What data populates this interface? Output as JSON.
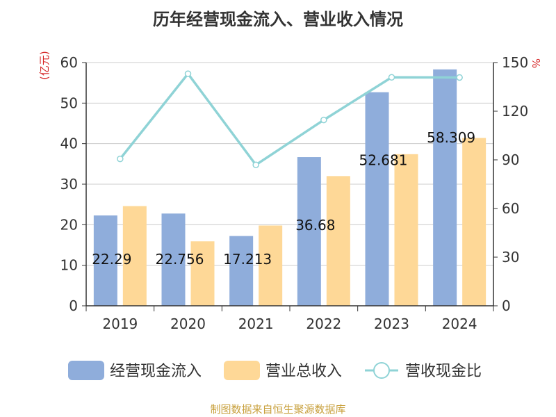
{
  "title": "历年经营现金流入、营业收入情况",
  "left_unit": "(亿元)",
  "right_unit": "%",
  "footer": "制图数据来自恒生聚源数据库",
  "colors": {
    "cash_inflow": "#8faddb",
    "revenue": "#fed897",
    "ratio": "#8fd3d6"
  },
  "chart_data": {
    "type": "bar",
    "categories": [
      "2019",
      "2020",
      "2021",
      "2022",
      "2023",
      "2024"
    ],
    "series": [
      {
        "name": "经营现金流入",
        "type": "bar",
        "axis": "left",
        "values": [
          22.29,
          22.756,
          17.213,
          36.68,
          52.681,
          58.309
        ],
        "labels": [
          "22.29",
          "22.756",
          "17.213",
          "36.68",
          "52.681",
          "58.309"
        ]
      },
      {
        "name": "营业总收入",
        "type": "bar",
        "axis": "left",
        "values": [
          24.6,
          15.9,
          19.8,
          32.0,
          37.4,
          41.4
        ]
      },
      {
        "name": "营收现金比",
        "type": "line",
        "axis": "right",
        "values": [
          90.6,
          143.1,
          86.9,
          114.6,
          140.9,
          140.8
        ]
      }
    ],
    "y_left": {
      "min": 0,
      "max": 60,
      "ticks": [
        0,
        10,
        20,
        30,
        40,
        50,
        60
      ]
    },
    "y_right": {
      "min": 0,
      "max": 150,
      "ticks": [
        0,
        30,
        60,
        90,
        120,
        150
      ]
    },
    "grid": true,
    "legend": "bottom"
  }
}
